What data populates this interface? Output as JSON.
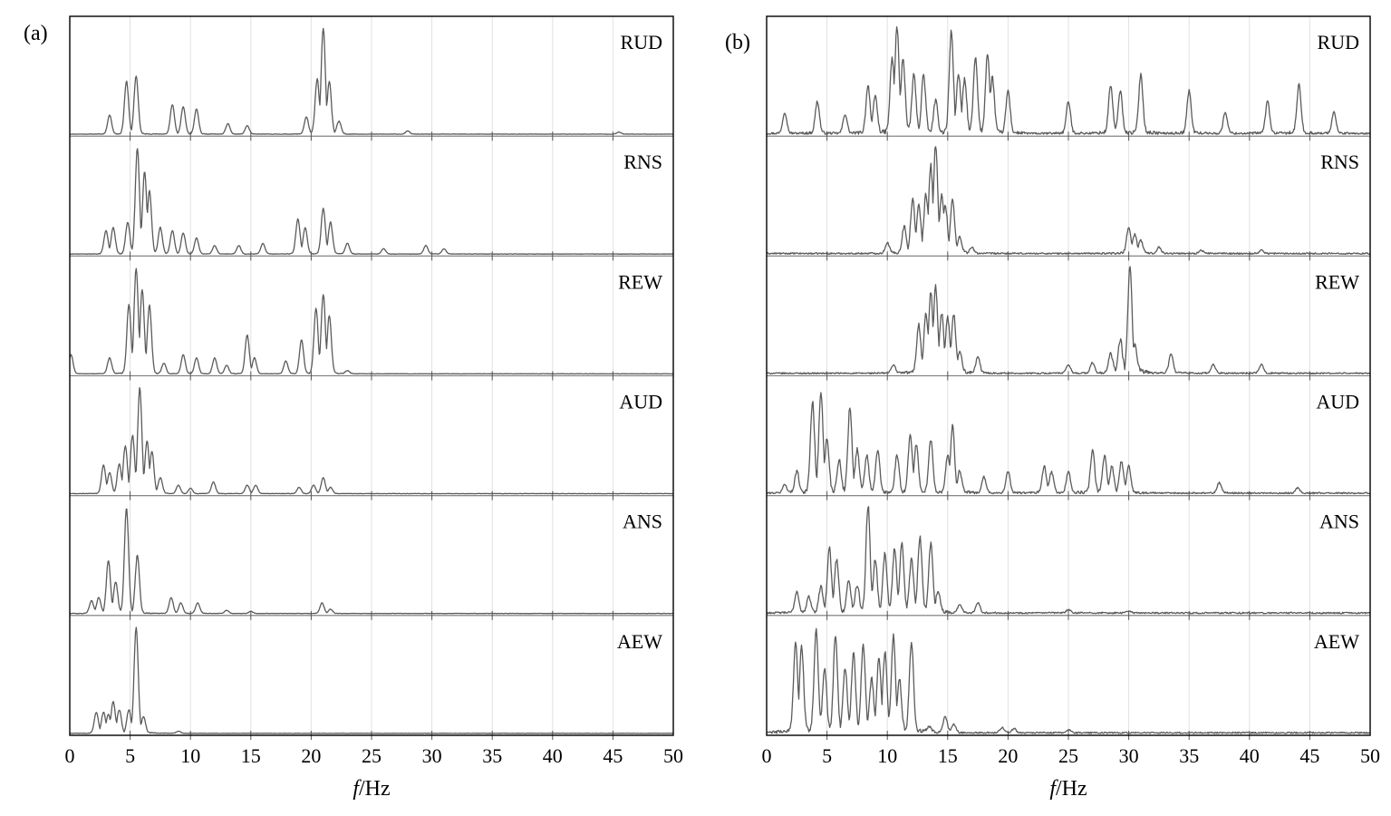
{
  "chart_data": [
    {
      "type": "line",
      "panel_label": "(a)",
      "xlabel": {
        "italic": "f",
        "rest": "/Hz"
      },
      "xlim": [
        0,
        50
      ],
      "x_ticks": [
        "0",
        "5",
        "10",
        "15",
        "20",
        "25",
        "30",
        "35",
        "40",
        "45",
        "50"
      ],
      "grid": "vertical",
      "series": [
        {
          "name": "RUD",
          "peaks": [
            [
              3.3,
              0.18
            ],
            [
              4.7,
              0.5
            ],
            [
              5.5,
              0.55
            ],
            [
              8.5,
              0.28
            ],
            [
              9.4,
              0.26
            ],
            [
              10.5,
              0.24
            ],
            [
              13.1,
              0.1
            ],
            [
              14.7,
              0.08
            ],
            [
              19.6,
              0.16
            ],
            [
              20.5,
              0.52
            ],
            [
              21.0,
              1.0
            ],
            [
              21.5,
              0.5
            ],
            [
              22.3,
              0.12
            ],
            [
              28.0,
              0.03
            ],
            [
              45.5,
              0.02
            ]
          ]
        },
        {
          "name": "RNS",
          "peaks": [
            [
              3.0,
              0.22
            ],
            [
              3.6,
              0.25
            ],
            [
              4.8,
              0.3
            ],
            [
              5.6,
              1.0
            ],
            [
              6.2,
              0.78
            ],
            [
              6.6,
              0.6
            ],
            [
              7.5,
              0.25
            ],
            [
              8.5,
              0.22
            ],
            [
              9.4,
              0.2
            ],
            [
              10.5,
              0.15
            ],
            [
              12.0,
              0.08
            ],
            [
              14.0,
              0.08
            ],
            [
              16.0,
              0.1
            ],
            [
              18.9,
              0.33
            ],
            [
              19.5,
              0.25
            ],
            [
              21.0,
              0.43
            ],
            [
              21.6,
              0.3
            ],
            [
              23.0,
              0.1
            ],
            [
              26.0,
              0.05
            ],
            [
              29.5,
              0.08
            ],
            [
              31.0,
              0.05
            ]
          ]
        },
        {
          "name": "REW",
          "peaks": [
            [
              0.1,
              0.18
            ],
            [
              3.3,
              0.15
            ],
            [
              4.9,
              0.65
            ],
            [
              5.5,
              1.0
            ],
            [
              6.0,
              0.8
            ],
            [
              6.6,
              0.65
            ],
            [
              7.8,
              0.1
            ],
            [
              9.4,
              0.18
            ],
            [
              10.5,
              0.15
            ],
            [
              12.0,
              0.15
            ],
            [
              13.0,
              0.08
            ],
            [
              14.7,
              0.37
            ],
            [
              15.3,
              0.15
            ],
            [
              17.9,
              0.12
            ],
            [
              19.2,
              0.32
            ],
            [
              20.4,
              0.62
            ],
            [
              21.0,
              0.75
            ],
            [
              21.5,
              0.55
            ],
            [
              23.0,
              0.03
            ]
          ]
        },
        {
          "name": "AUD",
          "peaks": [
            [
              2.8,
              0.27
            ],
            [
              3.3,
              0.2
            ],
            [
              4.1,
              0.28
            ],
            [
              4.6,
              0.45
            ],
            [
              5.2,
              0.55
            ],
            [
              5.8,
              1.0
            ],
            [
              6.4,
              0.5
            ],
            [
              6.8,
              0.4
            ],
            [
              7.5,
              0.15
            ],
            [
              9.0,
              0.08
            ],
            [
              10.0,
              0.05
            ],
            [
              11.9,
              0.11
            ],
            [
              14.7,
              0.08
            ],
            [
              15.4,
              0.08
            ],
            [
              19.0,
              0.06
            ],
            [
              20.2,
              0.08
            ],
            [
              21.0,
              0.15
            ],
            [
              21.6,
              0.06
            ]
          ]
        },
        {
          "name": "ANS",
          "peaks": [
            [
              1.8,
              0.12
            ],
            [
              2.4,
              0.15
            ],
            [
              3.2,
              0.5
            ],
            [
              3.8,
              0.3
            ],
            [
              4.7,
              1.0
            ],
            [
              5.6,
              0.55
            ],
            [
              8.4,
              0.15
            ],
            [
              9.2,
              0.1
            ],
            [
              10.6,
              0.1
            ],
            [
              13.0,
              0.03
            ],
            [
              15.0,
              0.02
            ],
            [
              20.9,
              0.1
            ],
            [
              21.6,
              0.04
            ]
          ]
        },
        {
          "name": "AEW",
          "peaks": [
            [
              2.2,
              0.2
            ],
            [
              2.8,
              0.2
            ],
            [
              3.2,
              0.18
            ],
            [
              3.6,
              0.3
            ],
            [
              4.1,
              0.22
            ],
            [
              4.9,
              0.22
            ],
            [
              5.5,
              1.0
            ],
            [
              6.1,
              0.15
            ],
            [
              9.0,
              0.02
            ]
          ]
        }
      ]
    },
    {
      "type": "line",
      "panel_label": "(b)",
      "xlabel": {
        "italic": "f",
        "rest": "/Hz"
      },
      "xlim": [
        0,
        50
      ],
      "x_ticks": [
        "0",
        "5",
        "10",
        "15",
        "20",
        "25",
        "30",
        "35",
        "40",
        "45",
        "50"
      ],
      "grid": "vertical",
      "series": [
        {
          "name": "RUD",
          "peaks": [
            [
              1.5,
              0.2
            ],
            [
              4.2,
              0.3
            ],
            [
              6.5,
              0.18
            ],
            [
              8.4,
              0.45
            ],
            [
              9.0,
              0.35
            ],
            [
              10.4,
              0.7
            ],
            [
              10.8,
              1.0
            ],
            [
              11.3,
              0.7
            ],
            [
              12.2,
              0.55
            ],
            [
              13.0,
              0.55
            ],
            [
              14.0,
              0.3
            ],
            [
              15.3,
              0.95
            ],
            [
              15.9,
              0.55
            ],
            [
              16.4,
              0.5
            ],
            [
              17.3,
              0.7
            ],
            [
              18.3,
              0.75
            ],
            [
              18.7,
              0.52
            ],
            [
              20.0,
              0.4
            ],
            [
              25.0,
              0.3
            ],
            [
              28.5,
              0.45
            ],
            [
              29.3,
              0.4
            ],
            [
              31.0,
              0.55
            ],
            [
              35.0,
              0.4
            ],
            [
              38.0,
              0.2
            ],
            [
              41.5,
              0.3
            ],
            [
              44.1,
              0.45
            ],
            [
              47.0,
              0.2
            ]
          ]
        },
        {
          "name": "RNS",
          "peaks": [
            [
              10.0,
              0.1
            ],
            [
              11.4,
              0.25
            ],
            [
              12.1,
              0.5
            ],
            [
              12.6,
              0.45
            ],
            [
              13.2,
              0.55
            ],
            [
              13.6,
              0.82
            ],
            [
              14.0,
              1.0
            ],
            [
              14.5,
              0.55
            ],
            [
              14.8,
              0.45
            ],
            [
              15.4,
              0.5
            ],
            [
              16.0,
              0.15
            ],
            [
              17.0,
              0.05
            ],
            [
              30.0,
              0.25
            ],
            [
              30.5,
              0.18
            ],
            [
              31.0,
              0.12
            ],
            [
              32.5,
              0.06
            ],
            [
              36.0,
              0.03
            ],
            [
              41.0,
              0.03
            ]
          ]
        },
        {
          "name": "REW",
          "peaks": [
            [
              10.5,
              0.08
            ],
            [
              12.6,
              0.45
            ],
            [
              13.2,
              0.55
            ],
            [
              13.6,
              0.75
            ],
            [
              14.0,
              0.8
            ],
            [
              14.5,
              0.55
            ],
            [
              15.0,
              0.52
            ],
            [
              15.5,
              0.55
            ],
            [
              16.0,
              0.2
            ],
            [
              17.5,
              0.15
            ],
            [
              25.0,
              0.08
            ],
            [
              27.0,
              0.1
            ],
            [
              28.5,
              0.18
            ],
            [
              29.3,
              0.3
            ],
            [
              30.1,
              1.0
            ],
            [
              30.5,
              0.25
            ],
            [
              33.5,
              0.18
            ],
            [
              37.0,
              0.08
            ],
            [
              41.0,
              0.08
            ]
          ]
        },
        {
          "name": "AUD",
          "peaks": [
            [
              1.5,
              0.08
            ],
            [
              2.5,
              0.2
            ],
            [
              3.8,
              0.85
            ],
            [
              4.5,
              0.95
            ],
            [
              5.0,
              0.5
            ],
            [
              6.0,
              0.3
            ],
            [
              6.9,
              0.8
            ],
            [
              7.5,
              0.4
            ],
            [
              8.3,
              0.35
            ],
            [
              9.2,
              0.4
            ],
            [
              10.8,
              0.35
            ],
            [
              11.9,
              0.55
            ],
            [
              12.4,
              0.45
            ],
            [
              13.6,
              0.5
            ],
            [
              15.0,
              0.35
            ],
            [
              15.4,
              0.62
            ],
            [
              16.0,
              0.2
            ],
            [
              18.0,
              0.15
            ],
            [
              20.0,
              0.2
            ],
            [
              23.0,
              0.25
            ],
            [
              23.6,
              0.2
            ],
            [
              25.0,
              0.2
            ],
            [
              27.0,
              0.4
            ],
            [
              28.0,
              0.35
            ],
            [
              28.6,
              0.25
            ],
            [
              29.4,
              0.3
            ],
            [
              30.0,
              0.25
            ],
            [
              37.5,
              0.1
            ],
            [
              44.0,
              0.05
            ]
          ]
        },
        {
          "name": "ANS",
          "peaks": [
            [
              2.5,
              0.2
            ],
            [
              3.5,
              0.15
            ],
            [
              4.5,
              0.25
            ],
            [
              5.2,
              0.6
            ],
            [
              5.8,
              0.5
            ],
            [
              6.8,
              0.3
            ],
            [
              7.5,
              0.25
            ],
            [
              8.4,
              1.0
            ],
            [
              9.0,
              0.5
            ],
            [
              9.8,
              0.55
            ],
            [
              10.6,
              0.6
            ],
            [
              11.2,
              0.65
            ],
            [
              12.0,
              0.5
            ],
            [
              12.7,
              0.7
            ],
            [
              13.6,
              0.65
            ],
            [
              14.2,
              0.2
            ],
            [
              16.0,
              0.08
            ],
            [
              17.5,
              0.1
            ],
            [
              25.0,
              0.03
            ],
            [
              30.0,
              0.02
            ]
          ]
        },
        {
          "name": "AEW",
          "peaks": [
            [
              2.4,
              0.85
            ],
            [
              2.9,
              0.8
            ],
            [
              4.1,
              0.95
            ],
            [
              4.8,
              0.6
            ],
            [
              5.7,
              0.9
            ],
            [
              6.5,
              0.6
            ],
            [
              7.2,
              0.75
            ],
            [
              8.0,
              0.8
            ],
            [
              8.7,
              0.5
            ],
            [
              9.3,
              0.7
            ],
            [
              9.8,
              0.75
            ],
            [
              10.5,
              0.9
            ],
            [
              11.0,
              0.5
            ],
            [
              12.0,
              0.85
            ],
            [
              13.5,
              0.05
            ],
            [
              14.8,
              0.15
            ],
            [
              15.5,
              0.08
            ],
            [
              19.5,
              0.05
            ],
            [
              20.5,
              0.04
            ],
            [
              25.0,
              0.03
            ]
          ]
        }
      ]
    }
  ]
}
